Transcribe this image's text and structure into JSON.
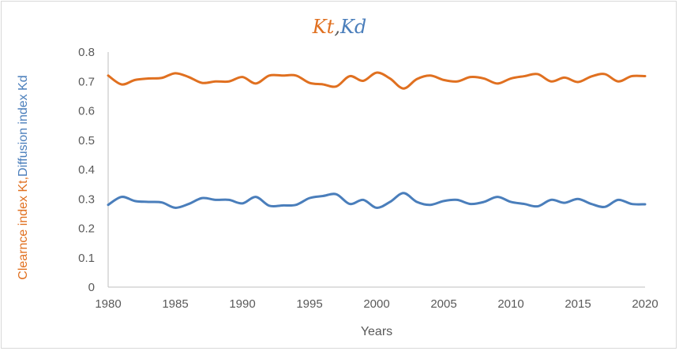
{
  "chart_data": {
    "type": "line",
    "title_parts": [
      {
        "text": "Kt",
        "color": "#e07020"
      },
      {
        "text": ",",
        "color": "#595959"
      },
      {
        "text": "Kd",
        "color": "#4a7ebb"
      }
    ],
    "xlabel": "Years",
    "ylabel_parts": [
      {
        "text": "Clearnce index  Kt,",
        "color": "#e07020"
      },
      {
        "text": "Diffusion index Kd",
        "color": "#4a7ebb"
      }
    ],
    "xlim": [
      1980,
      2020
    ],
    "ylim": [
      0,
      0.8
    ],
    "x_ticks": [
      1980,
      1985,
      1990,
      1995,
      2000,
      2005,
      2010,
      2015,
      2020
    ],
    "y_ticks": [
      "0",
      "0.1",
      "0.2",
      "0.3",
      "0.4",
      "0.5",
      "0.6",
      "0.7",
      "0.8"
    ],
    "grid": false,
    "x": [
      1980,
      1981,
      1982,
      1983,
      1984,
      1985,
      1986,
      1987,
      1988,
      1989,
      1990,
      1991,
      1992,
      1993,
      1994,
      1995,
      1996,
      1997,
      1998,
      1999,
      2000,
      2001,
      2002,
      2003,
      2004,
      2005,
      2006,
      2007,
      2008,
      2009,
      2010,
      2011,
      2012,
      2013,
      2014,
      2015,
      2016,
      2017,
      2018,
      2019,
      2020
    ],
    "series": [
      {
        "name": "Kt",
        "color": "#e07020",
        "values": [
          0.72,
          0.69,
          0.705,
          0.71,
          0.712,
          0.728,
          0.715,
          0.695,
          0.7,
          0.7,
          0.715,
          0.693,
          0.72,
          0.72,
          0.72,
          0.695,
          0.69,
          0.683,
          0.718,
          0.702,
          0.73,
          0.71,
          0.676,
          0.708,
          0.72,
          0.705,
          0.7,
          0.715,
          0.71,
          0.693,
          0.71,
          0.718,
          0.725,
          0.7,
          0.713,
          0.698,
          0.717,
          0.725,
          0.7,
          0.718,
          0.718
        ]
      },
      {
        "name": "Kd",
        "color": "#4a7ebb",
        "values": [
          0.28,
          0.307,
          0.293,
          0.29,
          0.288,
          0.27,
          0.283,
          0.303,
          0.297,
          0.297,
          0.285,
          0.307,
          0.277,
          0.278,
          0.28,
          0.303,
          0.31,
          0.316,
          0.283,
          0.297,
          0.27,
          0.29,
          0.32,
          0.29,
          0.28,
          0.293,
          0.297,
          0.283,
          0.29,
          0.307,
          0.29,
          0.283,
          0.275,
          0.297,
          0.287,
          0.3,
          0.283,
          0.273,
          0.297,
          0.283,
          0.282
        ]
      }
    ]
  }
}
